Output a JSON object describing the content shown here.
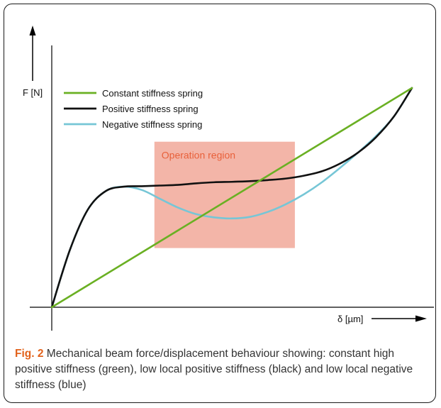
{
  "chart_data": {
    "type": "line",
    "title": "",
    "xlabel": "δ [µm]",
    "ylabel": "F [N]",
    "xlim": [
      0,
      10
    ],
    "ylim": [
      0,
      10
    ],
    "grid": false,
    "legend_position": "top-left",
    "series": [
      {
        "name": "Constant stiffness spring",
        "color": "#6ab023",
        "x": [
          0,
          10
        ],
        "y": [
          0,
          10
        ]
      },
      {
        "name": "Positive stiffness spring",
        "color": "#111111",
        "x": [
          0,
          0.5,
          1.0,
          1.5,
          2.0,
          2.5,
          3.0,
          3.5,
          4.0,
          4.5,
          5.0,
          5.5,
          6.0,
          6.5,
          7.0,
          7.5,
          8.0,
          8.5,
          9.0,
          9.5,
          10.0
        ],
        "y": [
          0,
          2.6,
          4.45,
          5.3,
          5.5,
          5.52,
          5.55,
          5.58,
          5.65,
          5.7,
          5.72,
          5.75,
          5.8,
          5.87,
          6.0,
          6.2,
          6.55,
          7.05,
          7.75,
          8.7,
          10.0
        ]
      },
      {
        "name": "Negative stiffness spring",
        "color": "#76c6d6",
        "x": [
          0,
          0.5,
          1.0,
          1.5,
          2.0,
          2.5,
          3.0,
          3.5,
          4.0,
          4.5,
          5.0,
          5.5,
          6.0,
          6.5,
          7.0,
          7.5,
          8.0,
          8.5,
          9.0,
          9.5,
          10.0
        ],
        "y": [
          0,
          2.6,
          4.45,
          5.3,
          5.5,
          5.35,
          4.95,
          4.55,
          4.25,
          4.1,
          4.05,
          4.12,
          4.35,
          4.7,
          5.15,
          5.7,
          6.35,
          7.05,
          7.8,
          8.7,
          10.0
        ]
      }
    ],
    "annotations": [
      {
        "text": "Operation region",
        "x_range": [
          2.85,
          6.75
        ],
        "y_range": [
          2.7,
          7.55
        ],
        "color": "#f3b5a8",
        "text_color": "#e8603a"
      }
    ]
  },
  "caption": {
    "label": "Fig. 2",
    "text": "Mechanical beam force/displacement behaviour showing: constant high positive stiffness (green), low local positive stiffness (black) and low local negative stiffness (blue)"
  }
}
